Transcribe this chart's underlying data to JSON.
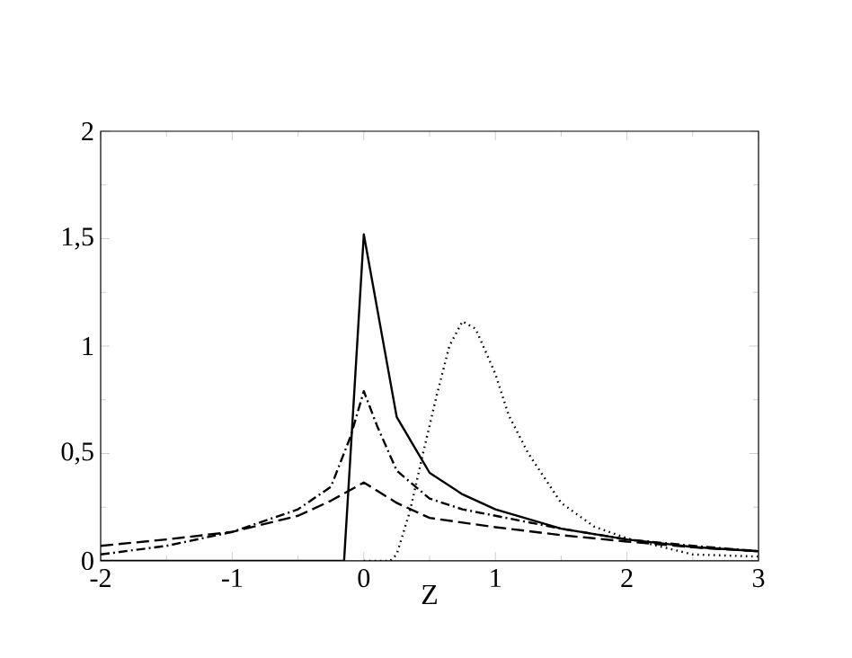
{
  "chart_data": {
    "type": "line",
    "xlabel": "Z",
    "xlim": [
      -2,
      3
    ],
    "ylim": [
      0,
      2
    ],
    "xticks": [
      -2,
      -1,
      0,
      1,
      2,
      3
    ],
    "yticks": [
      0,
      {
        "value": 0.5,
        "label": "0,5"
      },
      1,
      {
        "value": 1.5,
        "label": "1,5"
      },
      2
    ],
    "series": [
      {
        "color": "#000000",
        "line_style": "solid",
        "x": [
          -2,
          -0.15,
          0,
          0.25,
          0.5,
          0.75,
          1,
          1.5,
          2,
          2.5,
          3
        ],
        "values": [
          0,
          0,
          1.52,
          0.67,
          0.41,
          0.31,
          0.24,
          0.15,
          0.1,
          0.065,
          0.045
        ]
      },
      {
        "color": "#000000",
        "line_style": "dashdot",
        "x": [
          -2,
          -1.5,
          -1,
          -0.5,
          -0.25,
          -0.1,
          0,
          0.1,
          0.25,
          0.5,
          0.75,
          1,
          1.5,
          2,
          2.5,
          3
        ],
        "values": [
          0.03,
          0.07,
          0.135,
          0.24,
          0.345,
          0.58,
          0.79,
          0.63,
          0.42,
          0.29,
          0.24,
          0.21,
          0.15,
          0.1,
          0.07,
          0.045
        ]
      },
      {
        "color": "#000000",
        "line_style": "dashed",
        "x": [
          -2,
          -1.5,
          -1,
          -0.5,
          -0.25,
          0,
          0.25,
          0.5,
          1,
          1.5,
          2,
          2.5,
          3
        ],
        "values": [
          0.07,
          0.1,
          0.135,
          0.21,
          0.28,
          0.365,
          0.27,
          0.2,
          0.157,
          0.12,
          0.09,
          0.063,
          0.045
        ]
      },
      {
        "color": "#000000",
        "line_style": "dotted",
        "x": [
          0,
          0.2,
          0.25,
          0.35,
          0.45,
          0.55,
          0.65,
          0.75,
          0.85,
          1,
          1.1,
          1.25,
          1.5,
          1.75,
          2,
          2.5,
          3
        ],
        "values": [
          0,
          0,
          0.03,
          0.23,
          0.5,
          0.76,
          1.0,
          1.115,
          1.08,
          0.87,
          0.68,
          0.5,
          0.27,
          0.16,
          0.105,
          0.03,
          0.02
        ]
      }
    ]
  }
}
